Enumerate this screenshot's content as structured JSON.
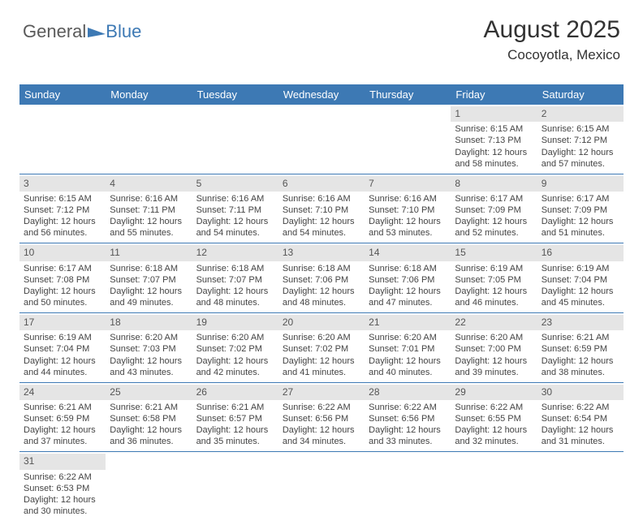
{
  "logo": {
    "general": "General",
    "blue": "Blue"
  },
  "header": {
    "title": "August 2025",
    "location": "Cocoyotla, Mexico"
  },
  "dayNames": [
    "Sunday",
    "Monday",
    "Tuesday",
    "Wednesday",
    "Thursday",
    "Friday",
    "Saturday"
  ],
  "colors": {
    "headerBar": "#3d79b4",
    "numStrip": "#e5e5e5",
    "weekBorder": "#3d79b4",
    "textMuted": "#444444",
    "logoGray": "#5a5a5a"
  },
  "days": [
    {
      "n": 1,
      "sunrise": "6:15 AM",
      "sunset": "7:13 PM",
      "daylight": "12 hours and 58 minutes."
    },
    {
      "n": 2,
      "sunrise": "6:15 AM",
      "sunset": "7:12 PM",
      "daylight": "12 hours and 57 minutes."
    },
    {
      "n": 3,
      "sunrise": "6:15 AM",
      "sunset": "7:12 PM",
      "daylight": "12 hours and 56 minutes."
    },
    {
      "n": 4,
      "sunrise": "6:16 AM",
      "sunset": "7:11 PM",
      "daylight": "12 hours and 55 minutes."
    },
    {
      "n": 5,
      "sunrise": "6:16 AM",
      "sunset": "7:11 PM",
      "daylight": "12 hours and 54 minutes."
    },
    {
      "n": 6,
      "sunrise": "6:16 AM",
      "sunset": "7:10 PM",
      "daylight": "12 hours and 54 minutes."
    },
    {
      "n": 7,
      "sunrise": "6:16 AM",
      "sunset": "7:10 PM",
      "daylight": "12 hours and 53 minutes."
    },
    {
      "n": 8,
      "sunrise": "6:17 AM",
      "sunset": "7:09 PM",
      "daylight": "12 hours and 52 minutes."
    },
    {
      "n": 9,
      "sunrise": "6:17 AM",
      "sunset": "7:09 PM",
      "daylight": "12 hours and 51 minutes."
    },
    {
      "n": 10,
      "sunrise": "6:17 AM",
      "sunset": "7:08 PM",
      "daylight": "12 hours and 50 minutes."
    },
    {
      "n": 11,
      "sunrise": "6:18 AM",
      "sunset": "7:07 PM",
      "daylight": "12 hours and 49 minutes."
    },
    {
      "n": 12,
      "sunrise": "6:18 AM",
      "sunset": "7:07 PM",
      "daylight": "12 hours and 48 minutes."
    },
    {
      "n": 13,
      "sunrise": "6:18 AM",
      "sunset": "7:06 PM",
      "daylight": "12 hours and 48 minutes."
    },
    {
      "n": 14,
      "sunrise": "6:18 AM",
      "sunset": "7:06 PM",
      "daylight": "12 hours and 47 minutes."
    },
    {
      "n": 15,
      "sunrise": "6:19 AM",
      "sunset": "7:05 PM",
      "daylight": "12 hours and 46 minutes."
    },
    {
      "n": 16,
      "sunrise": "6:19 AM",
      "sunset": "7:04 PM",
      "daylight": "12 hours and 45 minutes."
    },
    {
      "n": 17,
      "sunrise": "6:19 AM",
      "sunset": "7:04 PM",
      "daylight": "12 hours and 44 minutes."
    },
    {
      "n": 18,
      "sunrise": "6:20 AM",
      "sunset": "7:03 PM",
      "daylight": "12 hours and 43 minutes."
    },
    {
      "n": 19,
      "sunrise": "6:20 AM",
      "sunset": "7:02 PM",
      "daylight": "12 hours and 42 minutes."
    },
    {
      "n": 20,
      "sunrise": "6:20 AM",
      "sunset": "7:02 PM",
      "daylight": "12 hours and 41 minutes."
    },
    {
      "n": 21,
      "sunrise": "6:20 AM",
      "sunset": "7:01 PM",
      "daylight": "12 hours and 40 minutes."
    },
    {
      "n": 22,
      "sunrise": "6:20 AM",
      "sunset": "7:00 PM",
      "daylight": "12 hours and 39 minutes."
    },
    {
      "n": 23,
      "sunrise": "6:21 AM",
      "sunset": "6:59 PM",
      "daylight": "12 hours and 38 minutes."
    },
    {
      "n": 24,
      "sunrise": "6:21 AM",
      "sunset": "6:59 PM",
      "daylight": "12 hours and 37 minutes."
    },
    {
      "n": 25,
      "sunrise": "6:21 AM",
      "sunset": "6:58 PM",
      "daylight": "12 hours and 36 minutes."
    },
    {
      "n": 26,
      "sunrise": "6:21 AM",
      "sunset": "6:57 PM",
      "daylight": "12 hours and 35 minutes."
    },
    {
      "n": 27,
      "sunrise": "6:22 AM",
      "sunset": "6:56 PM",
      "daylight": "12 hours and 34 minutes."
    },
    {
      "n": 28,
      "sunrise": "6:22 AM",
      "sunset": "6:56 PM",
      "daylight": "12 hours and 33 minutes."
    },
    {
      "n": 29,
      "sunrise": "6:22 AM",
      "sunset": "6:55 PM",
      "daylight": "12 hours and 32 minutes."
    },
    {
      "n": 30,
      "sunrise": "6:22 AM",
      "sunset": "6:54 PM",
      "daylight": "12 hours and 31 minutes."
    },
    {
      "n": 31,
      "sunrise": "6:22 AM",
      "sunset": "6:53 PM",
      "daylight": "12 hours and 30 minutes."
    }
  ],
  "labels": {
    "sunrise": "Sunrise: ",
    "sunset": "Sunset: ",
    "daylight": "Daylight: "
  },
  "firstDayOffset": 5
}
